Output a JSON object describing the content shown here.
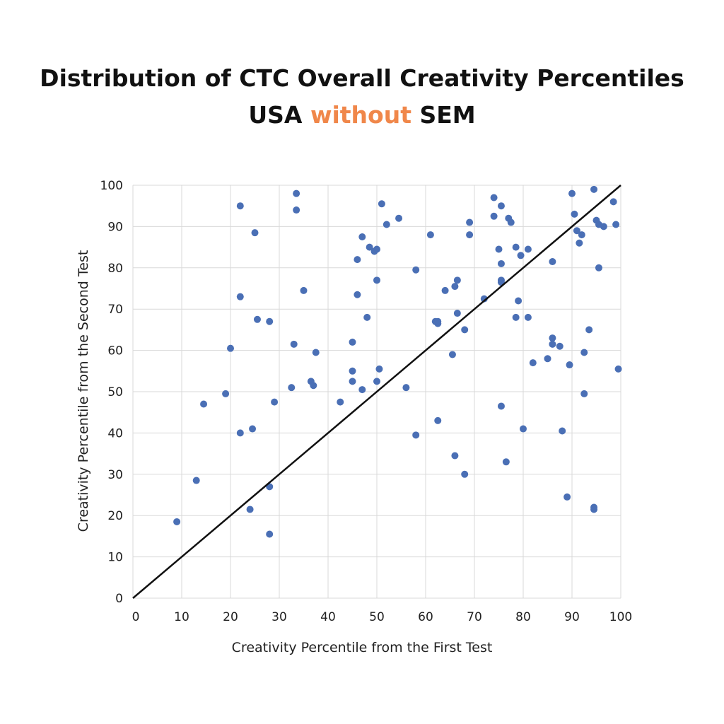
{
  "title": {
    "line1": "Distribution of CTC Overall Creativity Percentiles",
    "line2_part1": "USA",
    "line2_part2": "without",
    "line2_part3": "SEM"
  },
  "colors": {
    "accent": "#f0874a",
    "point": "#4a6fb5",
    "grid": "#d9d9d9",
    "reference_line": "#111111"
  },
  "chart_data": {
    "type": "scatter",
    "xlabel": "Creativity Percentile from the First Test",
    "ylabel": "Creativity Percentile from the Second Test",
    "xlim": [
      0,
      100
    ],
    "ylim": [
      0,
      100
    ],
    "xticks": [
      0,
      10,
      20,
      30,
      40,
      50,
      60,
      70,
      80,
      90,
      100
    ],
    "yticks": [
      0,
      10,
      20,
      30,
      40,
      50,
      60,
      70,
      80,
      90,
      100
    ],
    "grid": true,
    "reference_line": {
      "from": [
        0,
        0
      ],
      "to": [
        100,
        100
      ]
    },
    "series": [
      {
        "points": [
          [
            9,
            18.5
          ],
          [
            13,
            28.5
          ],
          [
            14.5,
            47
          ],
          [
            19,
            49.5
          ],
          [
            20,
            60.5
          ],
          [
            22,
            95
          ],
          [
            22,
            73
          ],
          [
            22,
            40
          ],
          [
            24,
            21.5
          ],
          [
            24.5,
            41
          ],
          [
            25,
            88.5
          ],
          [
            25.5,
            67.5
          ],
          [
            28,
            27
          ],
          [
            28,
            15.5
          ],
          [
            28,
            67
          ],
          [
            29,
            47.5
          ],
          [
            32.5,
            51
          ],
          [
            33,
            61.5
          ],
          [
            33.5,
            94
          ],
          [
            33.5,
            98
          ],
          [
            35,
            74.5
          ],
          [
            36.5,
            52.5
          ],
          [
            37,
            51.5
          ],
          [
            37.5,
            59.5
          ],
          [
            42.5,
            47.5
          ],
          [
            45,
            62
          ],
          [
            45,
            55
          ],
          [
            45,
            52.5
          ],
          [
            46,
            82
          ],
          [
            46,
            73.5
          ],
          [
            47,
            50.5
          ],
          [
            47,
            87.5
          ],
          [
            48,
            68
          ],
          [
            48.5,
            85
          ],
          [
            49.5,
            84
          ],
          [
            50,
            84.5
          ],
          [
            50,
            77
          ],
          [
            50,
            52.5
          ],
          [
            50.5,
            55.5
          ],
          [
            51,
            95.5
          ],
          [
            52,
            90.5
          ],
          [
            54.5,
            92
          ],
          [
            56,
            51
          ],
          [
            58,
            79.5
          ],
          [
            58,
            39.5
          ],
          [
            61,
            88
          ],
          [
            62,
            67
          ],
          [
            62.5,
            66.5
          ],
          [
            62.5,
            43
          ],
          [
            62.5,
            67
          ],
          [
            64,
            74.5
          ],
          [
            65.5,
            59
          ],
          [
            66,
            75.5
          ],
          [
            66,
            34.5
          ],
          [
            66.5,
            77
          ],
          [
            66.5,
            69
          ],
          [
            68,
            30
          ],
          [
            68,
            65
          ],
          [
            69,
            88
          ],
          [
            69,
            91
          ],
          [
            72,
            72.5
          ],
          [
            74,
            97
          ],
          [
            74,
            92.5
          ],
          [
            75,
            84.5
          ],
          [
            75.5,
            95
          ],
          [
            75.5,
            81
          ],
          [
            75.5,
            77
          ],
          [
            75.5,
            76.5
          ],
          [
            75.5,
            46.5
          ],
          [
            76.5,
            33
          ],
          [
            77,
            92
          ],
          [
            77.5,
            91
          ],
          [
            78.5,
            68
          ],
          [
            78.5,
            85
          ],
          [
            79,
            72
          ],
          [
            79.5,
            83
          ],
          [
            80,
            41
          ],
          [
            81,
            84.5
          ],
          [
            81,
            68
          ],
          [
            82,
            57
          ],
          [
            85,
            58
          ],
          [
            86,
            81.5
          ],
          [
            86,
            63
          ],
          [
            86,
            61.5
          ],
          [
            87.5,
            61
          ],
          [
            88,
            40.5
          ],
          [
            89,
            24.5
          ],
          [
            89.5,
            56.5
          ],
          [
            90,
            98
          ],
          [
            90.5,
            93
          ],
          [
            91,
            89
          ],
          [
            91.5,
            86
          ],
          [
            92,
            88
          ],
          [
            92.5,
            49.5
          ],
          [
            92.5,
            59.5
          ],
          [
            93.5,
            65
          ],
          [
            94.5,
            22
          ],
          [
            94.5,
            21.5
          ],
          [
            94.5,
            99
          ],
          [
            95,
            91.5
          ],
          [
            95.5,
            80
          ],
          [
            95.5,
            90.5
          ],
          [
            96.5,
            90
          ],
          [
            98.5,
            96
          ],
          [
            99,
            90.5
          ],
          [
            99.5,
            55.5
          ]
        ]
      }
    ]
  }
}
